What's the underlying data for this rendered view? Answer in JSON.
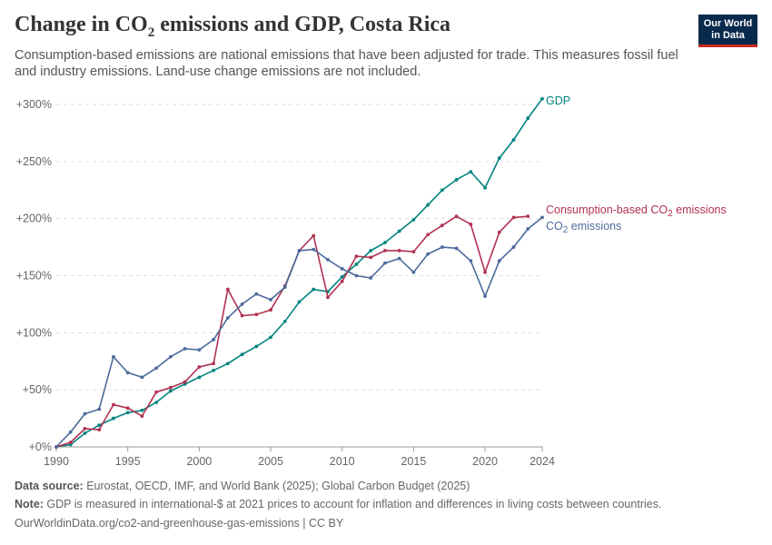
{
  "header": {
    "title_main": "Change in CO",
    "title_sub": "2",
    "title_rest": " emissions and GDP, Costa Rica",
    "subtitle": "Consumption-based emissions are national emissions that have been adjusted for trade. This measures fossil fuel and industry emissions. Land-use change emissions are not included."
  },
  "logo": {
    "line1": "Our World",
    "line2": "in Data"
  },
  "footer": {
    "source_label": "Data source:",
    "source_text": " Eurostat, OECD, IMF, and World Bank (2025); Global Carbon Budget (2025)",
    "note_label": "Note:",
    "note_text": " GDP is measured in international-$ at 2021 prices to account for inflation and differences in living costs between countries.",
    "url": "OurWorldinData.org/co2-and-greenhouse-gas-emissions | CC BY"
  },
  "chart_data": {
    "type": "line",
    "xlim": [
      1990,
      2024
    ],
    "ylim": [
      0,
      300
    ],
    "x_ticks": [
      1990,
      1995,
      2000,
      2005,
      2010,
      2015,
      2020,
      2024
    ],
    "y_ticks": [
      0,
      50,
      100,
      150,
      200,
      250,
      300
    ],
    "y_tick_labels": [
      "+0%",
      "+50%",
      "+100%",
      "+150%",
      "+200%",
      "+250%",
      "+300%"
    ],
    "grid": true,
    "legend": "inline-right",
    "x": [
      1990,
      1991,
      1992,
      1993,
      1994,
      1995,
      1996,
      1997,
      1998,
      1999,
      2000,
      2001,
      2002,
      2003,
      2004,
      2005,
      2006,
      2007,
      2008,
      2009,
      2010,
      2011,
      2012,
      2013,
      2014,
      2015,
      2016,
      2017,
      2018,
      2019,
      2020,
      2021,
      2022,
      2023,
      2024
    ],
    "series": [
      {
        "name": "GDP",
        "color": "#00847e",
        "values": [
          0,
          2,
          12,
          19,
          25,
          30,
          32,
          39,
          49,
          55,
          61,
          67,
          73,
          81,
          88,
          96,
          110,
          127,
          138,
          136,
          149,
          160,
          172,
          179,
          189,
          199,
          212,
          225,
          234,
          241,
          227,
          253,
          269,
          288,
          305
        ]
      },
      {
        "name": "Consumption-based CO₂ emissions",
        "name_main": "Consumption-based CO",
        "name_sub": "₂",
        "name_rest": " emissions",
        "color": "#b13150",
        "values": [
          0,
          4,
          16,
          15,
          37,
          34,
          27,
          48,
          52,
          57,
          70,
          73,
          138,
          115,
          116,
          120,
          141,
          172,
          185,
          131,
          145,
          167,
          166,
          172,
          172,
          171,
          186,
          194,
          202,
          195,
          153,
          188,
          201,
          202,
          null
        ]
      },
      {
        "name": "CO₂ emissions",
        "name_main": "CO",
        "name_sub": "₂",
        "name_rest": " emissions",
        "color": "#4c6a9c",
        "values": [
          0,
          13,
          29,
          33,
          79,
          65,
          61,
          69,
          79,
          86,
          85,
          94,
          113,
          125,
          134,
          129,
          140,
          172,
          173,
          164,
          156,
          150,
          148,
          161,
          165,
          153,
          169,
          175,
          174,
          163,
          132,
          163,
          175,
          191,
          201
        ]
      }
    ]
  }
}
